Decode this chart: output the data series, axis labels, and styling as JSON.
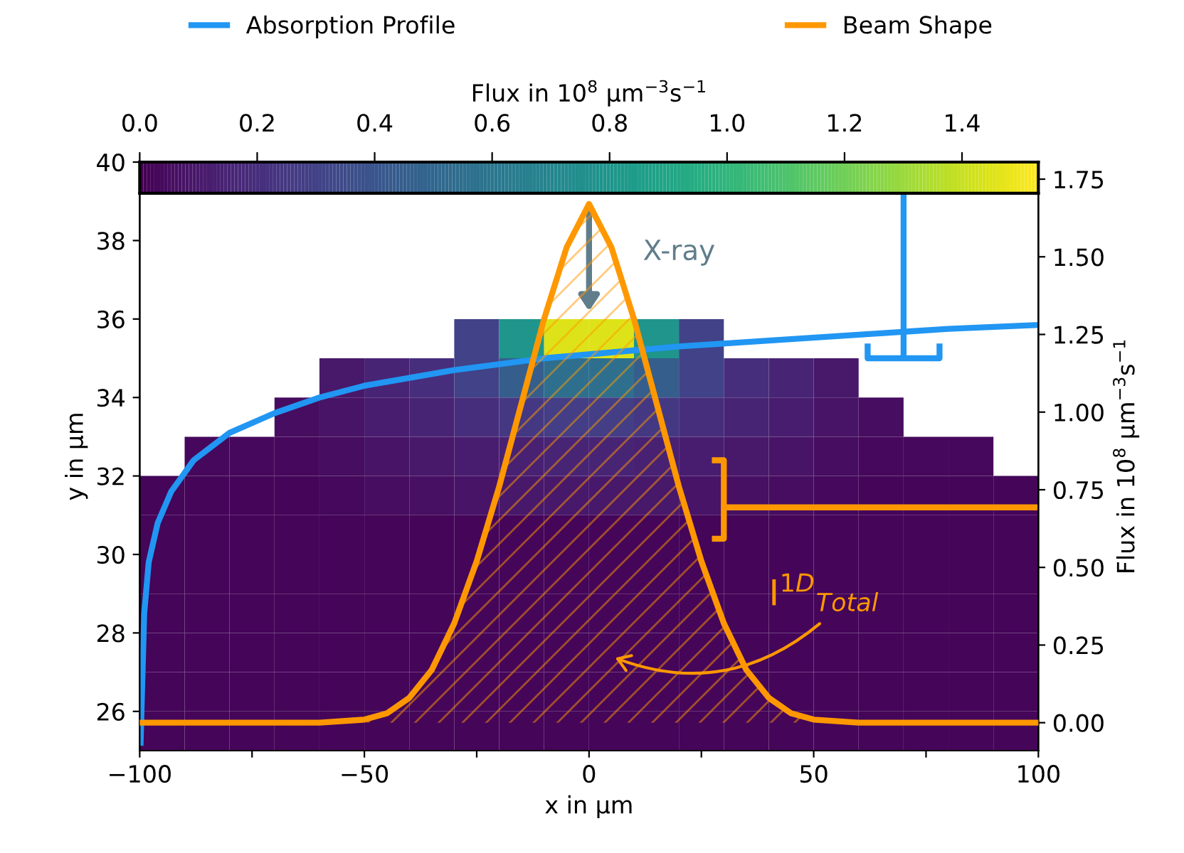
{
  "chart_data": [
    {
      "type": "line",
      "xlabel": "x in µm",
      "ylabel": "y in µm",
      "y2label": "Flux in 10$^{8}$ µm$^{−3}$s$^{−1}$",
      "xlim": [
        -100,
        100
      ],
      "xticks": [
        -100,
        {
          "value": -75,
          "label": null
        },
        -50,
        {
          "value": -25,
          "label": null
        },
        0,
        {
          "value": 25,
          "label": null
        },
        50,
        {
          "value": 75,
          "label": null
        },
        100
      ],
      "ylim": [
        25,
        40
      ],
      "yticks": [
        26,
        28,
        30,
        32,
        34,
        36,
        38,
        40
      ],
      "y2lim": [
        -0.09,
        1.805
      ],
      "y2ticks": [
        {
          "value": 0,
          "label": "0.00"
        },
        0.25,
        {
          "value": 0.5,
          "label": "0.50"
        },
        0.75,
        {
          "value": 1,
          "label": "1.00"
        },
        1.25,
        {
          "value": 1.5,
          "label": "1.50"
        },
        1.75
      ],
      "legend": "top",
      "series": [
        {
          "name": "Absorption Profile",
          "color": "#2196f3",
          "x": [
            -99.8,
            -99,
            -98,
            -96,
            -93,
            -88,
            -80,
            -70,
            -60,
            -50,
            -40,
            -30,
            -20,
            -10,
            0,
            20,
            40,
            60,
            80,
            100
          ],
          "values": [
            25.2,
            28.5,
            29.8,
            30.8,
            31.6,
            32.4,
            33.1,
            33.6,
            34.0,
            34.3,
            34.5,
            34.7,
            34.85,
            35.0,
            35.1,
            35.3,
            35.45,
            35.6,
            35.75,
            35.85
          ]
        },
        {
          "name": "Beam Shape",
          "type": "area",
          "axis": "y2",
          "color": "#ff9800",
          "x": [
            -100,
            -60,
            -50,
            -45,
            -40,
            -35,
            -30,
            -25,
            -20,
            -15,
            -10,
            -5,
            0,
            5,
            10,
            15,
            20,
            25,
            30,
            35,
            40,
            45,
            50,
            60,
            100
          ],
          "values": [
            0,
            0,
            0.01,
            0.03,
            0.08,
            0.17,
            0.32,
            0.52,
            0.76,
            1.03,
            1.3,
            1.53,
            1.67,
            1.53,
            1.3,
            1.03,
            0.76,
            0.52,
            0.32,
            0.17,
            0.08,
            0.03,
            0.01,
            0,
            0
          ]
        }
      ],
      "annotations": [
        "X-ray",
        "I$^{1D}$$_{Total}$"
      ]
    },
    {
      "type": "heatmap",
      "clabel": "Flux in 10$^{8}$ µm$^{−3}$s$^{−1}$",
      "clim": [
        0,
        1.53
      ],
      "cticks": [
        {
          "value": 0,
          "label": "0.0"
        },
        {
          "value": 0.2,
          "label": "0.2"
        },
        {
          "value": 0.4,
          "label": "0.4"
        },
        {
          "value": 0.6,
          "label": "0.6"
        },
        {
          "value": 0.8,
          "label": "0.8"
        },
        {
          "value": 1.0,
          "label": "1.0"
        },
        {
          "value": 1.2,
          "label": "1.2"
        },
        {
          "value": 1.4,
          "label": "1.4"
        }
      ],
      "categories": [
        null,
        null,
        null,
        null,
        null,
        null,
        null,
        null,
        null,
        null,
        null,
        null,
        null,
        null,
        null,
        null,
        null,
        null,
        null,
        null
      ],
      "y_categories": [
        null,
        null,
        null,
        null,
        null,
        null,
        null,
        null,
        null,
        null,
        null
      ],
      "cells": [
        [
          null,
          null,
          null,
          null,
          null,
          null,
          null,
          0.3,
          0.8,
          1.45,
          1.45,
          0.8,
          0.3,
          null,
          null,
          null,
          null,
          null,
          null,
          null
        ],
        [
          null,
          null,
          null,
          null,
          0.1,
          0.15,
          0.2,
          0.3,
          0.45,
          0.55,
          0.55,
          0.45,
          0.3,
          0.2,
          0.15,
          0.1,
          null,
          null,
          null,
          null
        ],
        [
          null,
          null,
          null,
          0.05,
          0.08,
          0.12,
          0.15,
          0.2,
          0.25,
          0.28,
          0.28,
          0.25,
          0.2,
          0.15,
          0.12,
          0.08,
          0.05,
          null,
          null,
          null
        ],
        [
          null,
          0.03,
          0.03,
          0.03,
          0.05,
          0.08,
          0.1,
          0.12,
          0.14,
          0.15,
          0.15,
          0.14,
          0.12,
          0.1,
          0.08,
          0.05,
          0.03,
          0.03,
          0.03,
          null
        ],
        [
          0.02,
          0.02,
          0.02,
          0.02,
          0.03,
          0.05,
          0.06,
          0.08,
          0.1,
          0.1,
          0.1,
          0.1,
          0.08,
          0.06,
          0.05,
          0.03,
          0.02,
          0.02,
          0.02,
          0.02
        ],
        [
          0.02,
          0.02,
          0.02,
          0.02,
          0.02,
          0.02,
          0.02,
          0.02,
          0.02,
          0.02,
          0.02,
          0.02,
          0.02,
          0.02,
          0.02,
          0.02,
          0.02,
          0.02,
          0.02,
          0.02
        ],
        [
          0.02,
          0.02,
          0.02,
          0.02,
          0.02,
          0.02,
          0.02,
          0.02,
          0.02,
          0.02,
          0.02,
          0.02,
          0.02,
          0.02,
          0.02,
          0.02,
          0.02,
          0.02,
          0.02,
          0.02
        ],
        [
          0.02,
          0.02,
          0.02,
          0.02,
          0.02,
          0.02,
          0.02,
          0.02,
          0.02,
          0.02,
          0.02,
          0.02,
          0.02,
          0.02,
          0.02,
          0.02,
          0.02,
          0.02,
          0.02,
          0.02
        ],
        [
          0.02,
          0.02,
          0.02,
          0.02,
          0.02,
          0.02,
          0.02,
          0.02,
          0.02,
          0.02,
          0.02,
          0.02,
          0.02,
          0.02,
          0.02,
          0.02,
          0.02,
          0.02,
          0.02,
          0.02
        ],
        [
          0.02,
          0.02,
          0.02,
          0.02,
          0.02,
          0.02,
          0.02,
          0.02,
          0.02,
          0.02,
          0.02,
          0.02,
          0.02,
          0.02,
          0.02,
          0.02,
          0.02,
          0.02,
          0.02,
          0.02
        ],
        [
          0.02,
          0.02,
          0.02,
          0.02,
          0.02,
          0.02,
          0.02,
          0.02,
          0.02,
          0.02,
          0.02,
          0.02,
          0.02,
          0.02,
          0.02,
          0.02,
          0.02,
          0.02,
          0.02,
          0.02
        ]
      ]
    }
  ]
}
